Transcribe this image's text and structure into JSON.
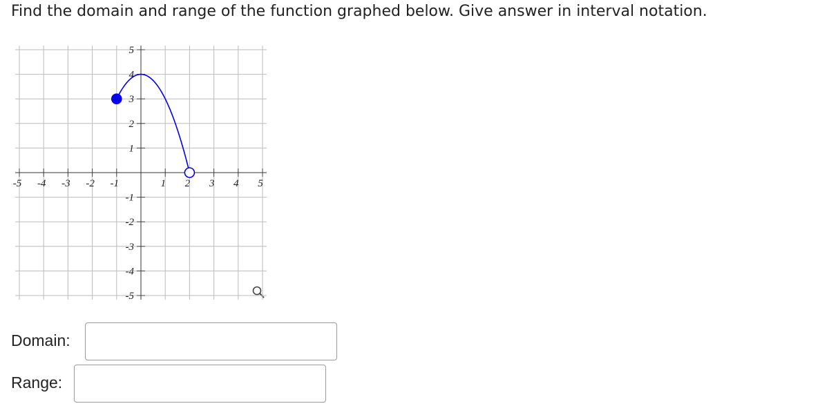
{
  "question": "Find the domain and range of the function graphed below. Give answer in interval notation.",
  "graph": {
    "xlim": [
      -5,
      5
    ],
    "ylim": [
      -5,
      5
    ],
    "xticks": [
      -5,
      -4,
      -3,
      -2,
      -1,
      1,
      2,
      3,
      4,
      5
    ],
    "yticks": [
      -5,
      -4,
      -3,
      -2,
      -1,
      1,
      2,
      3,
      4,
      5
    ],
    "curve": {
      "start": {
        "x": -1,
        "y": 3,
        "closed": true
      },
      "vertex": {
        "x": 0,
        "y": 4
      },
      "end": {
        "x": 2,
        "y": 0,
        "closed": false
      },
      "color": "#0000ee"
    }
  },
  "fields": [
    {
      "label": "Domain:"
    },
    {
      "label": "Range:"
    }
  ]
}
